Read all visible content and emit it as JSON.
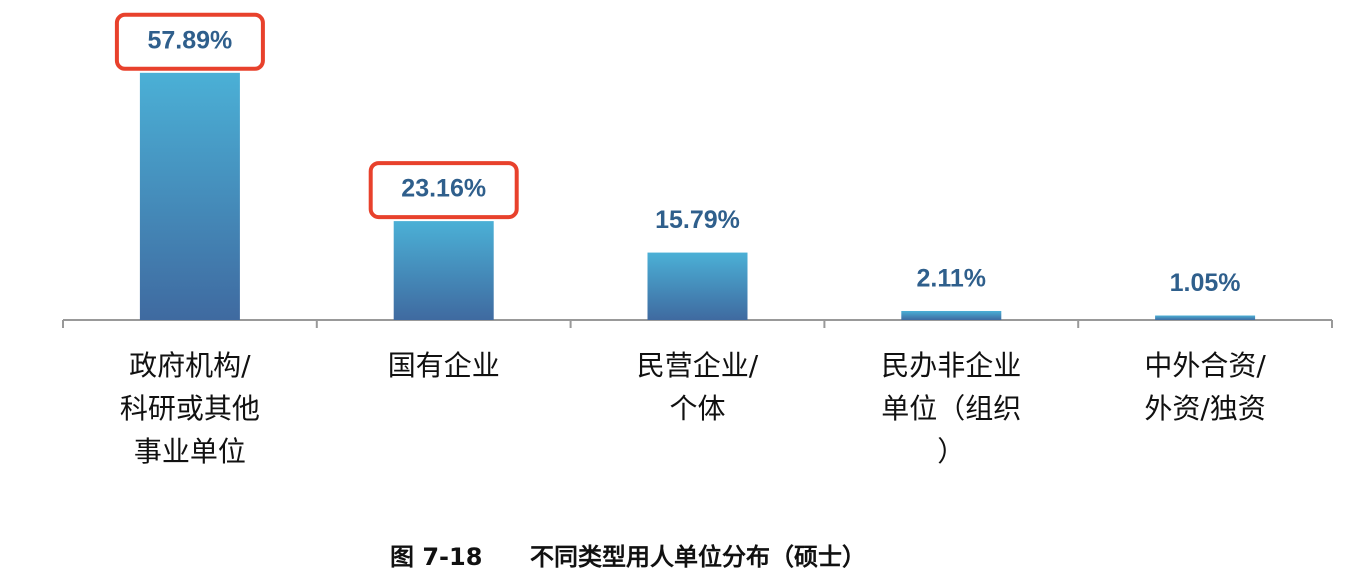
{
  "chart_data": {
    "type": "bar",
    "figure_label": "图 7-18",
    "title": "不同类型用人单位分布（硕士）",
    "categories": [
      "政府机构/科研或其他事业单位",
      "国有企业",
      "民营企业/个体",
      "民办非企业单位（组织）",
      "中外合资/外资/独资"
    ],
    "values": [
      57.89,
      23.16,
      15.79,
      2.11,
      1.05
    ],
    "value_labels": [
      "57.89%",
      "23.16%",
      "15.79%",
      "2.11%",
      "1.05%"
    ],
    "color": "#3f6aa0",
    "highlighted": [
      0,
      1
    ],
    "highlight_color": "#e8412c"
  }
}
